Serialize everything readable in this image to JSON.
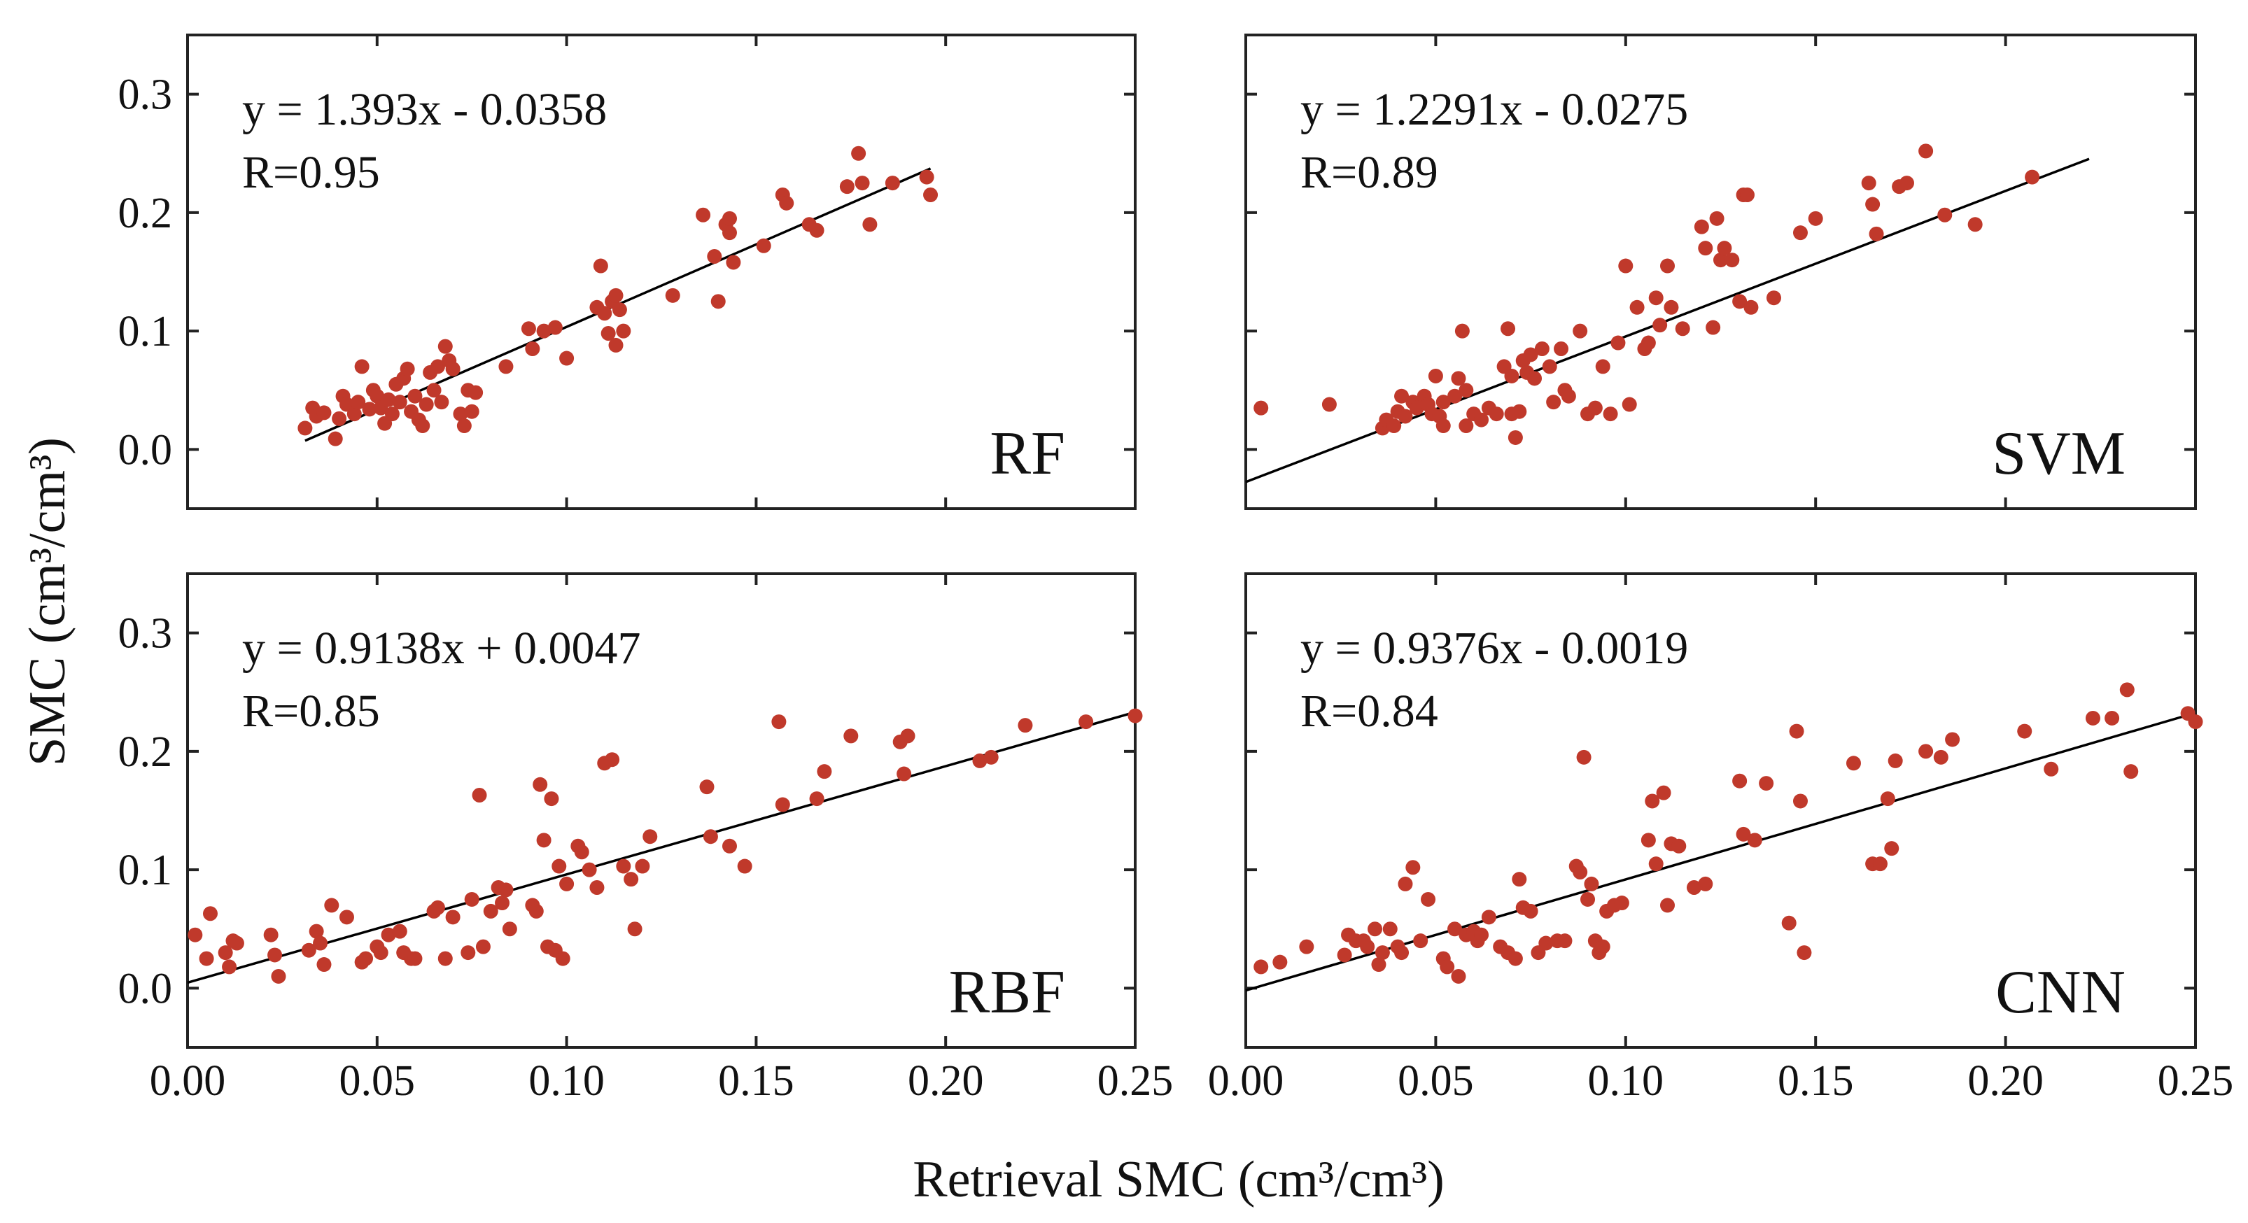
{
  "chart_data": [
    {
      "type": "scatter",
      "name": "RF",
      "panel_label": "RF",
      "equation": "y = 1.393x - 0.0358",
      "r_label": "R=0.95",
      "fit": {
        "slope": 1.393,
        "intercept": -0.0358,
        "x_range": [
          0.031,
          0.196
        ]
      },
      "xlim": [
        0,
        0.25
      ],
      "ylim": [
        -0.05,
        0.35
      ],
      "points": [
        [
          0.031,
          0.018
        ],
        [
          0.033,
          0.035
        ],
        [
          0.034,
          0.028
        ],
        [
          0.036,
          0.031
        ],
        [
          0.039,
          0.009
        ],
        [
          0.04,
          0.026
        ],
        [
          0.041,
          0.045
        ],
        [
          0.042,
          0.038
        ],
        [
          0.044,
          0.03
        ],
        [
          0.045,
          0.04
        ],
        [
          0.046,
          0.07
        ],
        [
          0.048,
          0.034
        ],
        [
          0.049,
          0.05
        ],
        [
          0.05,
          0.045
        ],
        [
          0.051,
          0.035
        ],
        [
          0.052,
          0.022
        ],
        [
          0.053,
          0.042
        ],
        [
          0.054,
          0.03
        ],
        [
          0.055,
          0.055
        ],
        [
          0.056,
          0.04
        ],
        [
          0.057,
          0.06
        ],
        [
          0.058,
          0.068
        ],
        [
          0.059,
          0.032
        ],
        [
          0.06,
          0.045
        ],
        [
          0.061,
          0.025
        ],
        [
          0.062,
          0.02
        ],
        [
          0.063,
          0.038
        ],
        [
          0.064,
          0.065
        ],
        [
          0.065,
          0.05
        ],
        [
          0.066,
          0.07
        ],
        [
          0.067,
          0.04
        ],
        [
          0.068,
          0.087
        ],
        [
          0.069,
          0.075
        ],
        [
          0.07,
          0.068
        ],
        [
          0.072,
          0.03
        ],
        [
          0.073,
          0.02
        ],
        [
          0.074,
          0.05
        ],
        [
          0.075,
          0.032
        ],
        [
          0.076,
          0.048
        ],
        [
          0.084,
          0.07
        ],
        [
          0.09,
          0.102
        ],
        [
          0.091,
          0.085
        ],
        [
          0.094,
          0.1
        ],
        [
          0.097,
          0.103
        ],
        [
          0.1,
          0.077
        ],
        [
          0.108,
          0.12
        ],
        [
          0.109,
          0.155
        ],
        [
          0.11,
          0.115
        ],
        [
          0.111,
          0.098
        ],
        [
          0.112,
          0.125
        ],
        [
          0.113,
          0.088
        ],
        [
          0.113,
          0.13
        ],
        [
          0.114,
          0.118
        ],
        [
          0.115,
          0.1
        ],
        [
          0.128,
          0.13
        ],
        [
          0.136,
          0.198
        ],
        [
          0.139,
          0.163
        ],
        [
          0.14,
          0.125
        ],
        [
          0.142,
          0.19
        ],
        [
          0.143,
          0.183
        ],
        [
          0.143,
          0.195
        ],
        [
          0.144,
          0.158
        ],
        [
          0.152,
          0.172
        ],
        [
          0.157,
          0.215
        ],
        [
          0.158,
          0.208
        ],
        [
          0.164,
          0.19
        ],
        [
          0.166,
          0.185
        ],
        [
          0.174,
          0.222
        ],
        [
          0.177,
          0.25
        ],
        [
          0.178,
          0.225
        ],
        [
          0.18,
          0.19
        ],
        [
          0.186,
          0.225
        ],
        [
          0.195,
          0.23
        ],
        [
          0.196,
          0.215
        ]
      ]
    },
    {
      "type": "scatter",
      "name": "SVM",
      "panel_label": "SVM",
      "equation": "y = 1.2291x - 0.0275",
      "r_label": "R=0.89",
      "fit": {
        "slope": 1.2291,
        "intercept": -0.0275,
        "x_range": [
          0.0,
          0.222
        ]
      },
      "xlim": [
        0,
        0.25
      ],
      "ylim": [
        -0.05,
        0.35
      ],
      "points": [
        [
          0.004,
          0.035
        ],
        [
          0.022,
          0.038
        ],
        [
          0.036,
          0.018
        ],
        [
          0.037,
          0.025
        ],
        [
          0.039,
          0.02
        ],
        [
          0.04,
          0.032
        ],
        [
          0.041,
          0.045
        ],
        [
          0.042,
          0.028
        ],
        [
          0.044,
          0.04
        ],
        [
          0.045,
          0.035
        ],
        [
          0.047,
          0.045
        ],
        [
          0.048,
          0.038
        ],
        [
          0.049,
          0.03
        ],
        [
          0.05,
          0.062
        ],
        [
          0.051,
          0.028
        ],
        [
          0.052,
          0.04
        ],
        [
          0.052,
          0.02
        ],
        [
          0.055,
          0.045
        ],
        [
          0.056,
          0.06
        ],
        [
          0.057,
          0.1
        ],
        [
          0.058,
          0.02
        ],
        [
          0.058,
          0.05
        ],
        [
          0.06,
          0.03
        ],
        [
          0.062,
          0.025
        ],
        [
          0.064,
          0.035
        ],
        [
          0.066,
          0.03
        ],
        [
          0.068,
          0.07
        ],
        [
          0.069,
          0.102
        ],
        [
          0.07,
          0.03
        ],
        [
          0.07,
          0.062
        ],
        [
          0.071,
          0.01
        ],
        [
          0.072,
          0.032
        ],
        [
          0.073,
          0.075
        ],
        [
          0.074,
          0.065
        ],
        [
          0.075,
          0.08
        ],
        [
          0.076,
          0.06
        ],
        [
          0.078,
          0.085
        ],
        [
          0.08,
          0.07
        ],
        [
          0.081,
          0.04
        ],
        [
          0.083,
          0.085
        ],
        [
          0.084,
          0.05
        ],
        [
          0.085,
          0.045
        ],
        [
          0.088,
          0.1
        ],
        [
          0.09,
          0.03
        ],
        [
          0.092,
          0.035
        ],
        [
          0.094,
          0.07
        ],
        [
          0.096,
          0.03
        ],
        [
          0.098,
          0.09
        ],
        [
          0.1,
          0.155
        ],
        [
          0.101,
          0.038
        ],
        [
          0.103,
          0.12
        ],
        [
          0.105,
          0.085
        ],
        [
          0.106,
          0.09
        ],
        [
          0.108,
          0.128
        ],
        [
          0.109,
          0.105
        ],
        [
          0.111,
          0.155
        ],
        [
          0.112,
          0.12
        ],
        [
          0.115,
          0.102
        ],
        [
          0.12,
          0.188
        ],
        [
          0.121,
          0.17
        ],
        [
          0.123,
          0.103
        ],
        [
          0.124,
          0.195
        ],
        [
          0.125,
          0.16
        ],
        [
          0.126,
          0.17
        ],
        [
          0.128,
          0.16
        ],
        [
          0.13,
          0.125
        ],
        [
          0.131,
          0.215
        ],
        [
          0.132,
          0.215
        ],
        [
          0.133,
          0.12
        ],
        [
          0.139,
          0.128
        ],
        [
          0.146,
          0.183
        ],
        [
          0.15,
          0.195
        ],
        [
          0.164,
          0.225
        ],
        [
          0.165,
          0.207
        ],
        [
          0.166,
          0.182
        ],
        [
          0.172,
          0.222
        ],
        [
          0.174,
          0.225
        ],
        [
          0.179,
          0.252
        ],
        [
          0.184,
          0.198
        ],
        [
          0.192,
          0.19
        ],
        [
          0.207,
          0.23
        ]
      ]
    },
    {
      "type": "scatter",
      "name": "RBF",
      "panel_label": "RBF",
      "equation": "y = 0.9138x + 0.0047",
      "r_label": "R=0.85",
      "fit": {
        "slope": 0.9138,
        "intercept": 0.0047,
        "x_range": [
          0.0,
          0.25
        ]
      },
      "xlim": [
        0,
        0.25
      ],
      "ylim": [
        -0.05,
        0.35
      ],
      "points": [
        [
          0.002,
          0.045
        ],
        [
          0.005,
          0.025
        ],
        [
          0.006,
          0.063
        ],
        [
          0.01,
          0.03
        ],
        [
          0.011,
          0.018
        ],
        [
          0.012,
          0.04
        ],
        [
          0.013,
          0.038
        ],
        [
          0.022,
          0.045
        ],
        [
          0.023,
          0.028
        ],
        [
          0.024,
          0.01
        ],
        [
          0.032,
          0.032
        ],
        [
          0.034,
          0.048
        ],
        [
          0.035,
          0.038
        ],
        [
          0.036,
          0.02
        ],
        [
          0.038,
          0.07
        ],
        [
          0.042,
          0.06
        ],
        [
          0.046,
          0.022
        ],
        [
          0.047,
          0.025
        ],
        [
          0.05,
          0.035
        ],
        [
          0.051,
          0.03
        ],
        [
          0.053,
          0.045
        ],
        [
          0.056,
          0.048
        ],
        [
          0.057,
          0.03
        ],
        [
          0.059,
          0.025
        ],
        [
          0.06,
          0.025
        ],
        [
          0.065,
          0.065
        ],
        [
          0.066,
          0.068
        ],
        [
          0.068,
          0.025
        ],
        [
          0.07,
          0.06
        ],
        [
          0.074,
          0.03
        ],
        [
          0.075,
          0.075
        ],
        [
          0.077,
          0.163
        ],
        [
          0.078,
          0.035
        ],
        [
          0.08,
          0.065
        ],
        [
          0.082,
          0.085
        ],
        [
          0.083,
          0.072
        ],
        [
          0.084,
          0.083
        ],
        [
          0.085,
          0.05
        ],
        [
          0.091,
          0.07
        ],
        [
          0.092,
          0.065
        ],
        [
          0.093,
          0.172
        ],
        [
          0.094,
          0.125
        ],
        [
          0.095,
          0.035
        ],
        [
          0.096,
          0.16
        ],
        [
          0.097,
          0.032
        ],
        [
          0.098,
          0.103
        ],
        [
          0.099,
          0.025
        ],
        [
          0.1,
          0.088
        ],
        [
          0.103,
          0.12
        ],
        [
          0.104,
          0.115
        ],
        [
          0.106,
          0.1
        ],
        [
          0.108,
          0.085
        ],
        [
          0.11,
          0.19
        ],
        [
          0.112,
          0.193
        ],
        [
          0.115,
          0.103
        ],
        [
          0.117,
          0.092
        ],
        [
          0.118,
          0.05
        ],
        [
          0.12,
          0.103
        ],
        [
          0.122,
          0.128
        ],
        [
          0.137,
          0.17
        ],
        [
          0.138,
          0.128
        ],
        [
          0.143,
          0.12
        ],
        [
          0.147,
          0.103
        ],
        [
          0.156,
          0.225
        ],
        [
          0.157,
          0.155
        ],
        [
          0.166,
          0.16
        ],
        [
          0.168,
          0.183
        ],
        [
          0.175,
          0.213
        ],
        [
          0.188,
          0.208
        ],
        [
          0.19,
          0.213
        ],
        [
          0.189,
          0.181
        ],
        [
          0.209,
          0.192
        ],
        [
          0.212,
          0.195
        ],
        [
          0.221,
          0.222
        ],
        [
          0.237,
          0.225
        ],
        [
          0.25,
          0.23
        ]
      ]
    },
    {
      "type": "scatter",
      "name": "CNN",
      "panel_label": "CNN",
      "equation": "y = 0.9376x - 0.0019",
      "r_label": "R=0.84",
      "fit": {
        "slope": 0.9376,
        "intercept": -0.0019,
        "x_range": [
          0.0,
          0.25
        ]
      },
      "xlim": [
        0,
        0.25
      ],
      "ylim": [
        -0.05,
        0.35
      ],
      "points": [
        [
          0.004,
          0.018
        ],
        [
          0.009,
          0.022
        ],
        [
          0.016,
          0.035
        ],
        [
          0.026,
          0.028
        ],
        [
          0.027,
          0.045
        ],
        [
          0.029,
          0.04
        ],
        [
          0.031,
          0.04
        ],
        [
          0.032,
          0.035
        ],
        [
          0.034,
          0.05
        ],
        [
          0.035,
          0.02
        ],
        [
          0.036,
          0.03
        ],
        [
          0.038,
          0.05
        ],
        [
          0.04,
          0.035
        ],
        [
          0.041,
          0.03
        ],
        [
          0.042,
          0.088
        ],
        [
          0.044,
          0.102
        ],
        [
          0.046,
          0.04
        ],
        [
          0.048,
          0.075
        ],
        [
          0.052,
          0.025
        ],
        [
          0.053,
          0.018
        ],
        [
          0.055,
          0.05
        ],
        [
          0.056,
          0.01
        ],
        [
          0.058,
          0.045
        ],
        [
          0.06,
          0.048
        ],
        [
          0.061,
          0.04
        ],
        [
          0.062,
          0.045
        ],
        [
          0.064,
          0.06
        ],
        [
          0.067,
          0.035
        ],
        [
          0.069,
          0.03
        ],
        [
          0.071,
          0.025
        ],
        [
          0.072,
          0.092
        ],
        [
          0.073,
          0.068
        ],
        [
          0.075,
          0.065
        ],
        [
          0.077,
          0.03
        ],
        [
          0.079,
          0.038
        ],
        [
          0.082,
          0.04
        ],
        [
          0.084,
          0.04
        ],
        [
          0.087,
          0.103
        ],
        [
          0.088,
          0.098
        ],
        [
          0.089,
          0.195
        ],
        [
          0.09,
          0.075
        ],
        [
          0.091,
          0.088
        ],
        [
          0.092,
          0.04
        ],
        [
          0.093,
          0.03
        ],
        [
          0.094,
          0.035
        ],
        [
          0.095,
          0.065
        ],
        [
          0.097,
          0.07
        ],
        [
          0.099,
          0.072
        ],
        [
          0.106,
          0.125
        ],
        [
          0.107,
          0.158
        ],
        [
          0.108,
          0.105
        ],
        [
          0.11,
          0.165
        ],
        [
          0.111,
          0.07
        ],
        [
          0.112,
          0.122
        ],
        [
          0.114,
          0.12
        ],
        [
          0.118,
          0.085
        ],
        [
          0.121,
          0.088
        ],
        [
          0.13,
          0.175
        ],
        [
          0.131,
          0.13
        ],
        [
          0.134,
          0.125
        ],
        [
          0.137,
          0.173
        ],
        [
          0.143,
          0.055
        ],
        [
          0.145,
          0.217
        ],
        [
          0.146,
          0.158
        ],
        [
          0.147,
          0.03
        ],
        [
          0.16,
          0.19
        ],
        [
          0.165,
          0.105
        ],
        [
          0.167,
          0.105
        ],
        [
          0.169,
          0.16
        ],
        [
          0.17,
          0.118
        ],
        [
          0.171,
          0.192
        ],
        [
          0.179,
          0.2
        ],
        [
          0.183,
          0.195
        ],
        [
          0.186,
          0.21
        ],
        [
          0.205,
          0.217
        ],
        [
          0.212,
          0.185
        ],
        [
          0.223,
          0.228
        ],
        [
          0.228,
          0.228
        ],
        [
          0.232,
          0.252
        ],
        [
          0.233,
          0.183
        ],
        [
          0.248,
          0.232
        ],
        [
          0.25,
          0.225
        ]
      ]
    }
  ],
  "axes": {
    "xlabel": "Retrieval SMC (cm³/cm³)",
    "ylabel": "SMC (cm³/cm³)",
    "x_ticks": [
      "0.00",
      "0.05",
      "0.10",
      "0.15",
      "0.20",
      "0.25"
    ],
    "y_ticks": [
      "0.0",
      "0.1",
      "0.2",
      "0.3"
    ]
  },
  "colors": {
    "marker": "#c0392b",
    "fit_line": "#000000",
    "frame": "#222222"
  }
}
